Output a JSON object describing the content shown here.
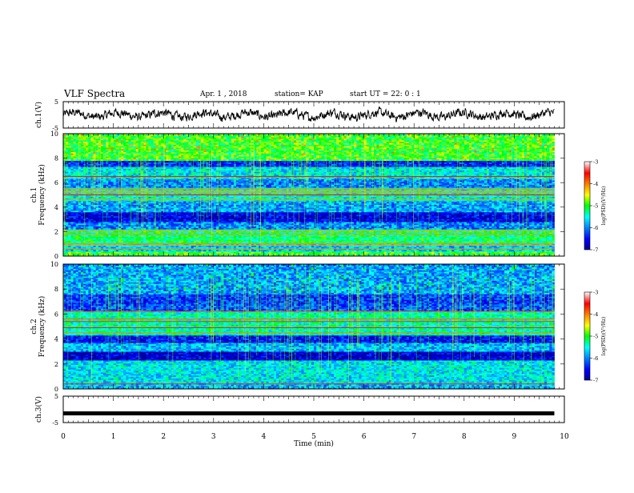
{
  "header": {
    "title": "VLF Spectra",
    "date": "Apr. 1 , 2018",
    "station": "station= KAP",
    "start": "start UT =  22: 0  : 1"
  },
  "chart_data": [
    {
      "type": "line",
      "ylabel": "ch.1(V)",
      "xlim": [
        0,
        10
      ],
      "ylim": [
        -5,
        5
      ],
      "yticks": [
        "5",
        "-5"
      ],
      "y_trace_range": [
        -3,
        3
      ],
      "y_trace_note": "noisy waveform over 0-9.8 min"
    },
    {
      "type": "heatmap",
      "ylabel": "ch.1\nFrequency (kHz)",
      "ylabel_lines": [
        "ch.1",
        "Frequency (kHz)"
      ],
      "xlim": [
        0,
        9.8
      ],
      "ylim": [
        0,
        10
      ],
      "yticks": [
        "0",
        "2",
        "4",
        "6",
        "8",
        "10"
      ],
      "colorbar": {
        "label": "log(PSD)(V²/Hz)",
        "range": [
          -7,
          -3
        ],
        "ticks": [
          "-3",
          "-4",
          "-5",
          "-6",
          "-7"
        ]
      },
      "bands": [
        {
          "from": 0.0,
          "to": 0.4,
          "level": -5.0
        },
        {
          "from": 0.4,
          "to": 1.0,
          "level": -5.7
        },
        {
          "from": 1.0,
          "to": 2.2,
          "level": -5.2
        },
        {
          "from": 2.2,
          "to": 2.8,
          "level": -6.0
        },
        {
          "from": 2.8,
          "to": 3.6,
          "level": -6.6
        },
        {
          "from": 3.6,
          "to": 4.5,
          "level": -5.9
        },
        {
          "from": 4.5,
          "to": 5.6,
          "level": -5.5
        },
        {
          "from": 5.6,
          "to": 6.3,
          "level": -6.0
        },
        {
          "from": 6.3,
          "to": 7.3,
          "level": -5.6
        },
        {
          "from": 7.3,
          "to": 7.8,
          "level": -6.4
        },
        {
          "from": 7.8,
          "to": 10.0,
          "level": -5.0
        }
      ],
      "lines_khz": [
        0.6,
        0.9,
        1.0,
        1.8,
        2.1,
        4.6,
        5.0,
        5.2,
        5.3,
        5.5,
        6.5
      ]
    },
    {
      "type": "heatmap",
      "ylabel": "ch.2\nFrequency (kHz)",
      "ylabel_lines": [
        "ch.2",
        "Frequency (kHz)"
      ],
      "xlim": [
        0,
        9.8
      ],
      "ylim": [
        0,
        10
      ],
      "yticks": [
        "0",
        "2",
        "4",
        "6",
        "8",
        "10"
      ],
      "colorbar": {
        "label": "log(PSD)(V²/Hz)",
        "range": [
          -7,
          -3
        ],
        "ticks": [
          "-3",
          "-4",
          "-5",
          "-6",
          "-7"
        ]
      },
      "bands": [
        {
          "from": 0.0,
          "to": 0.5,
          "level": -5.8
        },
        {
          "from": 0.5,
          "to": 2.3,
          "level": -5.6
        },
        {
          "from": 2.3,
          "to": 3.0,
          "level": -6.7
        },
        {
          "from": 3.0,
          "to": 3.7,
          "level": -5.8
        },
        {
          "from": 3.7,
          "to": 4.3,
          "level": -6.5
        },
        {
          "from": 4.3,
          "to": 6.2,
          "level": -5.4
        },
        {
          "from": 6.2,
          "to": 6.8,
          "level": -6.2
        },
        {
          "from": 6.8,
          "to": 7.6,
          "level": -6.3
        },
        {
          "from": 7.6,
          "to": 10.0,
          "level": -5.9
        }
      ],
      "lines_khz": [
        0.4,
        4.5,
        4.9,
        5.4,
        5.6,
        6.2
      ]
    },
    {
      "type": "line",
      "ylabel": "ch.3(V)",
      "xlim": [
        0,
        10
      ],
      "ylim": [
        -5,
        5
      ],
      "yticks": [
        "5",
        "-5"
      ],
      "y_value": -1.5,
      "xlabel": "Time (min)",
      "xticks": [
        "0",
        "1",
        "2",
        "3",
        "4",
        "5",
        "6",
        "7",
        "8",
        "9",
        "10"
      ]
    }
  ]
}
